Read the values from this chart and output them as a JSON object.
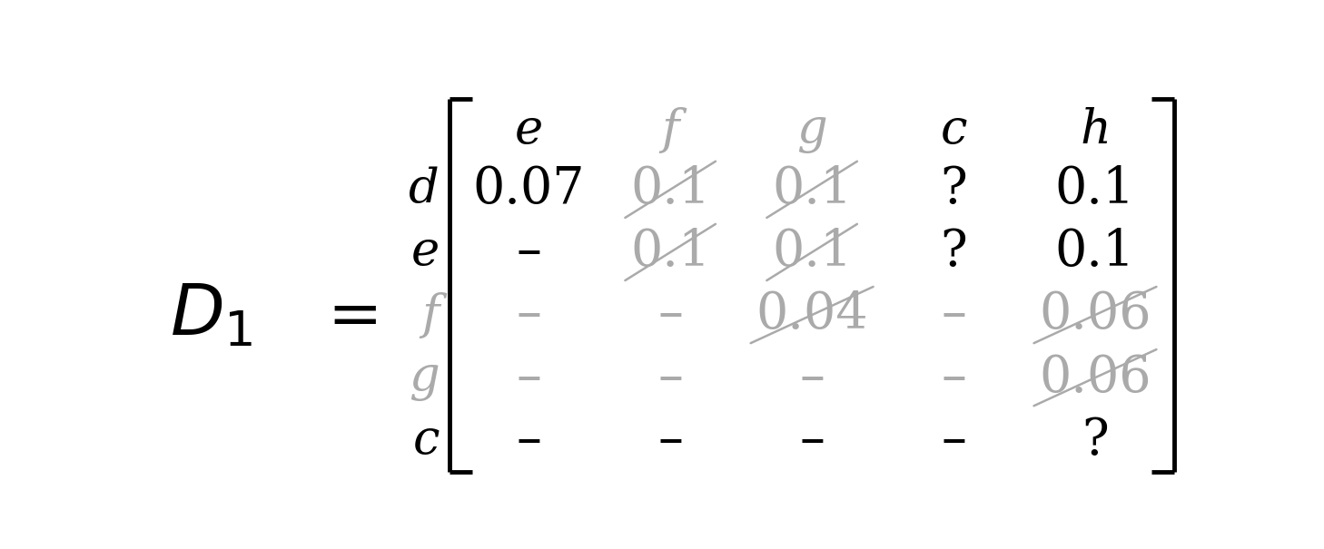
{
  "title": "D_1",
  "col_labels": [
    "e",
    "f",
    "g",
    "c",
    "h"
  ],
  "row_labels": [
    "d",
    "e",
    "f",
    "g",
    "c"
  ],
  "col_label_colors": [
    "#000000",
    "#aaaaaa",
    "#aaaaaa",
    "#000000",
    "#000000"
  ],
  "row_label_colors": [
    "#000000",
    "#000000",
    "#aaaaaa",
    "#aaaaaa",
    "#000000"
  ],
  "cells": [
    [
      "0.07",
      "0.1",
      "0.1",
      "?",
      "0.1"
    ],
    [
      "–",
      "0.1",
      "0.1",
      "?",
      "0.1"
    ],
    [
      "–",
      "–",
      "0.04",
      "–",
      "0.06"
    ],
    [
      "–",
      "–",
      "–",
      "–",
      "0.06"
    ],
    [
      "–",
      "–",
      "–",
      "–",
      "?"
    ]
  ],
  "cell_colors": [
    [
      "#000000",
      "#aaaaaa",
      "#aaaaaa",
      "#000000",
      "#000000"
    ],
    [
      "#000000",
      "#aaaaaa",
      "#aaaaaa",
      "#000000",
      "#000000"
    ],
    [
      "#aaaaaa",
      "#aaaaaa",
      "#aaaaaa",
      "#aaaaaa",
      "#aaaaaa"
    ],
    [
      "#aaaaaa",
      "#aaaaaa",
      "#aaaaaa",
      "#aaaaaa",
      "#aaaaaa"
    ],
    [
      "#000000",
      "#000000",
      "#000000",
      "#000000",
      "#000000"
    ]
  ],
  "strikethrough": [
    [
      false,
      true,
      true,
      false,
      false
    ],
    [
      false,
      true,
      true,
      false,
      false
    ],
    [
      false,
      false,
      true,
      false,
      true
    ],
    [
      false,
      false,
      false,
      false,
      true
    ],
    [
      false,
      false,
      false,
      false,
      false
    ]
  ],
  "fig_width": 14.58,
  "fig_height": 6.05,
  "dpi": 100,
  "col_header_fontsize": 38,
  "row_label_fontsize": 38,
  "cell_fontsize_number": 40,
  "cell_fontsize_symbol": 40,
  "d1_fontsize": 56,
  "eq_fontsize": 52,
  "bracket_lw": 3.5,
  "bracket_arm": 0.022
}
